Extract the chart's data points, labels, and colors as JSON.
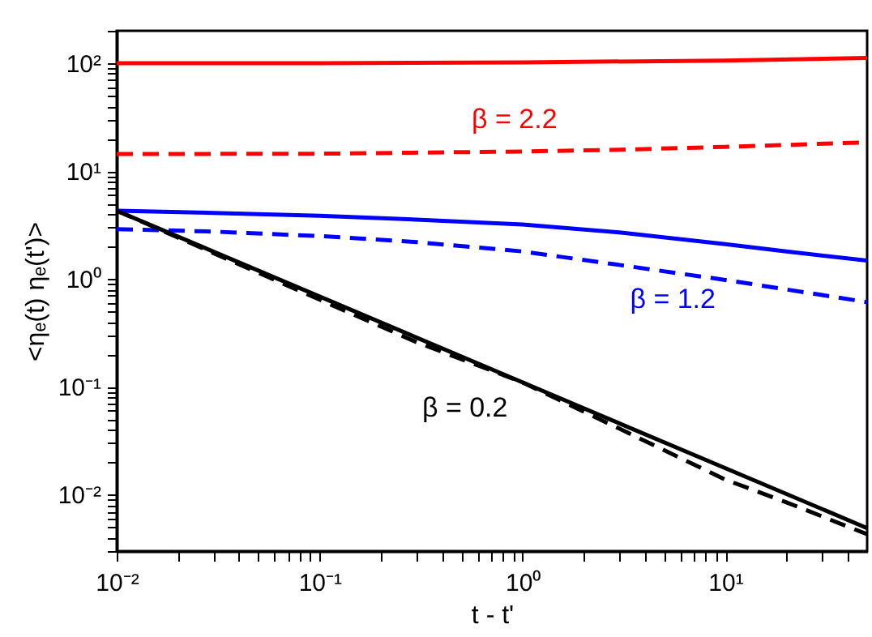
{
  "chart_data": {
    "type": "line",
    "xlabel": "t - t'",
    "ylabel": "<ηₑ(t) ηₑ(t')>",
    "log": "xy",
    "grid": false,
    "marker": "none",
    "xlim": [
      0.01,
      50
    ],
    "ylim": [
      0.003,
      200
    ],
    "xticks": [
      {
        "value": 0.01,
        "label": "10⁻²"
      },
      {
        "value": 0.02,
        "label": null
      },
      {
        "value": 0.03,
        "label": null
      },
      {
        "value": 0.04,
        "label": null
      },
      {
        "value": 0.05,
        "label": null
      },
      {
        "value": 0.06,
        "label": null
      },
      {
        "value": 0.07,
        "label": null
      },
      {
        "value": 0.08,
        "label": null
      },
      {
        "value": 0.09,
        "label": null
      },
      {
        "value": 0.1,
        "label": "10⁻¹"
      },
      {
        "value": 0.2,
        "label": null
      },
      {
        "value": 0.3,
        "label": null
      },
      {
        "value": 0.4,
        "label": null
      },
      {
        "value": 0.5,
        "label": null
      },
      {
        "value": 0.6,
        "label": null
      },
      {
        "value": 0.7,
        "label": null
      },
      {
        "value": 0.8,
        "label": null
      },
      {
        "value": 0.9,
        "label": null
      },
      {
        "value": 1,
        "label": "10⁰"
      },
      {
        "value": 2,
        "label": null
      },
      {
        "value": 3,
        "label": null
      },
      {
        "value": 4,
        "label": null
      },
      {
        "value": 5,
        "label": null
      },
      {
        "value": 6,
        "label": null
      },
      {
        "value": 7,
        "label": null
      },
      {
        "value": 8,
        "label": null
      },
      {
        "value": 9,
        "label": null
      },
      {
        "value": 10,
        "label": "10¹"
      },
      {
        "value": 20,
        "label": null
      },
      {
        "value": 30,
        "label": null
      },
      {
        "value": 40,
        "label": null
      }
    ],
    "yticks": [
      {
        "value": 0.003,
        "label": null
      },
      {
        "value": 0.004,
        "label": null
      },
      {
        "value": 0.005,
        "label": null
      },
      {
        "value": 0.006,
        "label": null
      },
      {
        "value": 0.007,
        "label": null
      },
      {
        "value": 0.008,
        "label": null
      },
      {
        "value": 0.009,
        "label": null
      },
      {
        "value": 0.01,
        "label": "10⁻²"
      },
      {
        "value": 0.02,
        "label": null
      },
      {
        "value": 0.03,
        "label": null
      },
      {
        "value": 0.04,
        "label": null
      },
      {
        "value": 0.05,
        "label": null
      },
      {
        "value": 0.06,
        "label": null
      },
      {
        "value": 0.07,
        "label": null
      },
      {
        "value": 0.08,
        "label": null
      },
      {
        "value": 0.09,
        "label": null
      },
      {
        "value": 0.1,
        "label": "10⁻¹"
      },
      {
        "value": 0.2,
        "label": null
      },
      {
        "value": 0.3,
        "label": null
      },
      {
        "value": 0.4,
        "label": null
      },
      {
        "value": 0.5,
        "label": null
      },
      {
        "value": 0.6,
        "label": null
      },
      {
        "value": 0.7,
        "label": null
      },
      {
        "value": 0.8,
        "label": null
      },
      {
        "value": 0.9,
        "label": null
      },
      {
        "value": 1,
        "label": "10⁰"
      },
      {
        "value": 2,
        "label": null
      },
      {
        "value": 3,
        "label": null
      },
      {
        "value": 4,
        "label": null
      },
      {
        "value": 5,
        "label": null
      },
      {
        "value": 6,
        "label": null
      },
      {
        "value": 7,
        "label": null
      },
      {
        "value": 8,
        "label": null
      },
      {
        "value": 9,
        "label": null
      },
      {
        "value": 10,
        "label": "10¹"
      },
      {
        "value": 20,
        "label": null
      },
      {
        "value": 30,
        "label": null
      },
      {
        "value": 40,
        "label": null
      },
      {
        "value": 50,
        "label": null
      },
      {
        "value": 60,
        "label": null
      },
      {
        "value": 70,
        "label": null
      },
      {
        "value": 80,
        "label": null
      },
      {
        "value": 90,
        "label": null
      },
      {
        "value": 100,
        "label": "10²"
      },
      {
        "value": 200,
        "label": null
      }
    ],
    "series": [
      {
        "color": "#ff0000",
        "line_style": "solid",
        "x": [
          0.01,
          0.1,
          1,
          10,
          50
        ],
        "values": [
          100,
          100,
          102,
          106,
          112
        ]
      },
      {
        "color": "#ff0000",
        "line_style": "dashed",
        "x": [
          0.01,
          0.1,
          1,
          3,
          10,
          20,
          50
        ],
        "values": [
          14.4,
          14.5,
          15.2,
          15.8,
          16.8,
          17.5,
          18.5
        ]
      },
      {
        "color": "#0000ff",
        "line_style": "solid",
        "x": [
          0.01,
          0.03,
          0.1,
          0.3,
          1,
          3,
          10,
          20,
          50
        ],
        "values": [
          4.3,
          4.1,
          3.85,
          3.55,
          3.2,
          2.7,
          2.1,
          1.8,
          1.48
        ]
      },
      {
        "color": "#0000ff",
        "line_style": "dashed",
        "x": [
          0.01,
          0.03,
          0.1,
          0.3,
          1,
          3,
          10,
          20,
          50
        ],
        "values": [
          2.9,
          2.75,
          2.5,
          2.2,
          1.8,
          1.35,
          0.98,
          0.8,
          0.61
        ]
      },
      {
        "color": "#000000",
        "line_style": "solid",
        "x": [
          0.01,
          1,
          50
        ],
        "values": [
          4.3,
          0.11,
          0.0049
        ]
      },
      {
        "color": "#000000",
        "line_style": "dashed",
        "x": [
          0.01,
          0.3,
          1,
          3,
          10,
          20,
          50
        ],
        "values": [
          4.3,
          0.26,
          0.11,
          0.041,
          0.0138,
          0.0085,
          0.0043
        ]
      }
    ],
    "annotations": [
      "β = 2.2",
      "β = 1.2",
      "β = 0.2"
    ]
  }
}
